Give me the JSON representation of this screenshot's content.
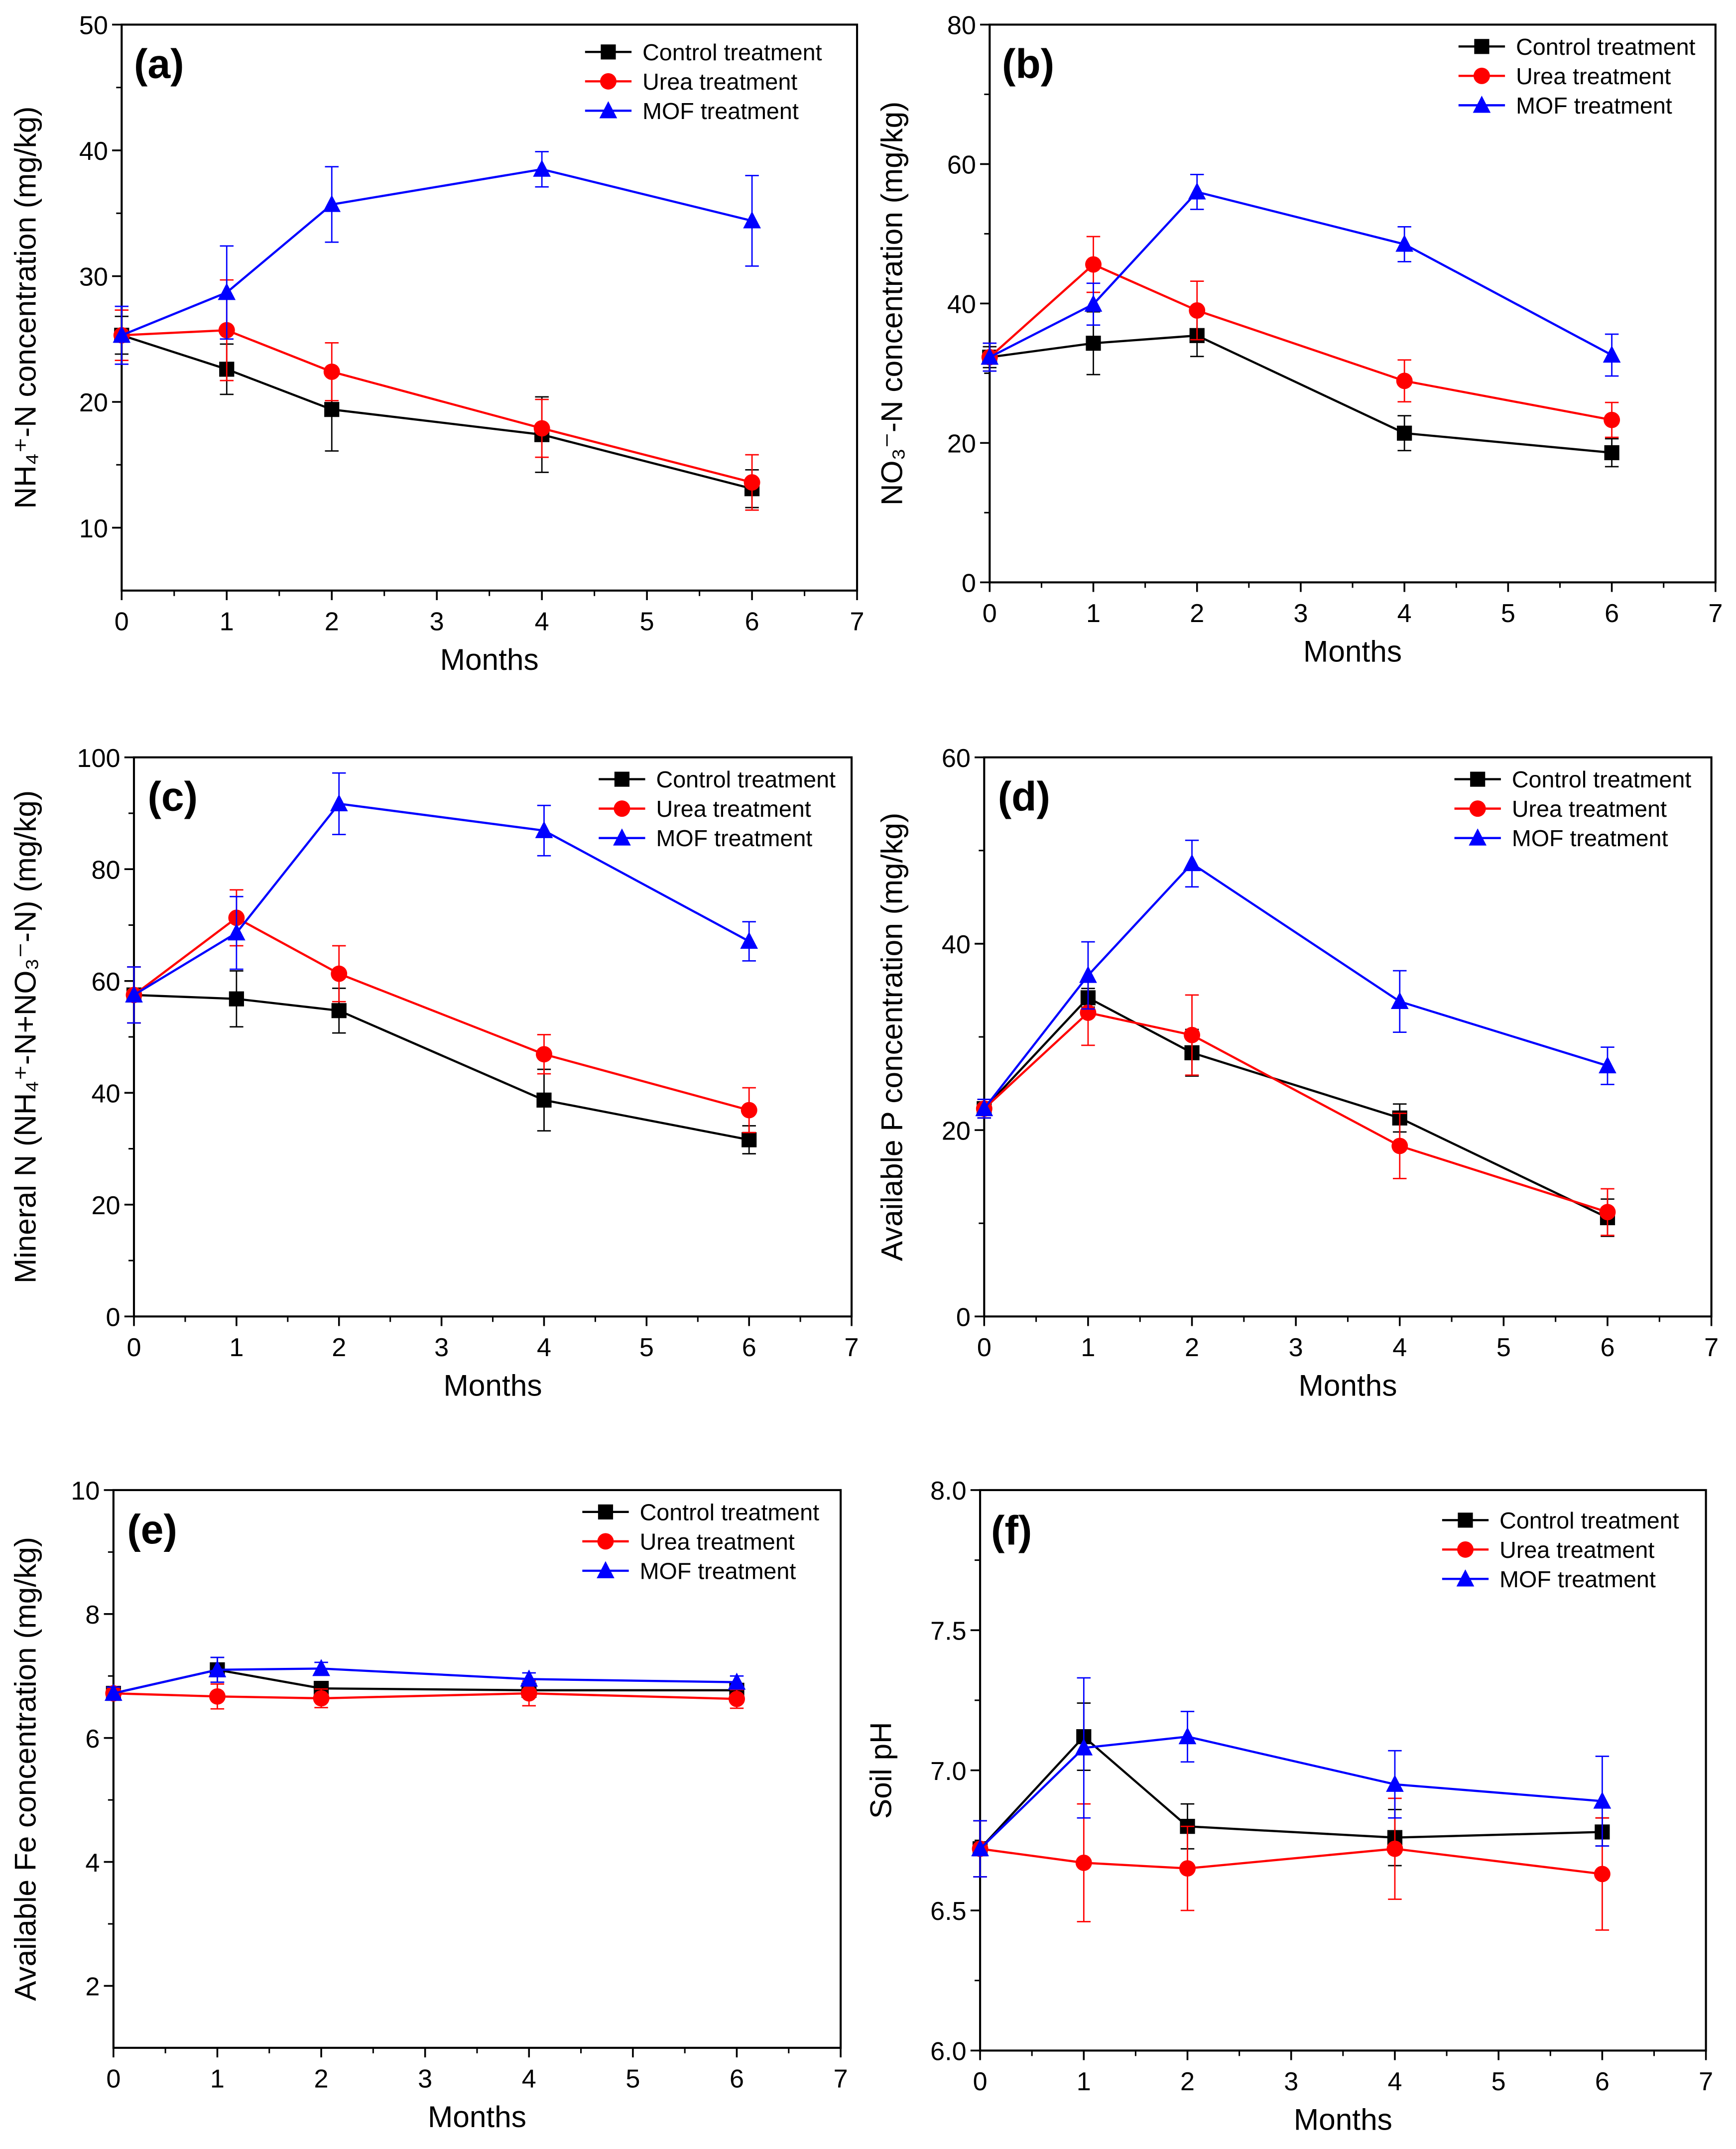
{
  "colors": {
    "control": "#000000",
    "urea": "#ff0000",
    "mof": "#0000ff"
  },
  "chart_data": [
    {
      "panel": "(a)",
      "type": "line",
      "xlabel": "Months",
      "ylabel": "NH₄⁺-N concentration (mg/kg)",
      "xlim": [
        0,
        7
      ],
      "xticks": [
        0,
        1,
        2,
        3,
        4,
        5,
        6,
        7
      ],
      "ylim": [
        5,
        50
      ],
      "yticks": [
        10,
        20,
        30,
        40,
        50
      ],
      "legend": "top-right",
      "x": [
        0,
        1,
        2,
        4,
        6
      ],
      "series": [
        {
          "name": "Control treatment",
          "color": "#000000",
          "marker": "square",
          "values": [
            25.3,
            22.6,
            19.4,
            17.4,
            13.1
          ],
          "errors": [
            1.5,
            2.0,
            3.3,
            3.0,
            1.5
          ]
        },
        {
          "name": "Urea treatment",
          "color": "#ff0000",
          "marker": "circle",
          "values": [
            25.3,
            25.7,
            22.4,
            17.9,
            13.6
          ],
          "errors": [
            2.0,
            4.0,
            2.3,
            2.3,
            2.2
          ]
        },
        {
          "name": "MOF treatment",
          "color": "#0000ff",
          "marker": "triangle",
          "values": [
            25.3,
            28.7,
            35.7,
            38.5,
            34.4
          ],
          "errors": [
            2.3,
            3.7,
            3.0,
            1.4,
            3.6
          ]
        }
      ]
    },
    {
      "panel": "(b)",
      "type": "line",
      "xlabel": "Months",
      "ylabel": "NO₃⁻-N concentration (mg/kg)",
      "xlim": [
        0,
        7
      ],
      "xticks": [
        0,
        1,
        2,
        3,
        4,
        5,
        6,
        7
      ],
      "ylim": [
        0,
        80
      ],
      "yticks": [
        0,
        20,
        40,
        60,
        80
      ],
      "legend": "top-right",
      "x": [
        0,
        1,
        2,
        4,
        6
      ],
      "series": [
        {
          "name": "Control treatment",
          "color": "#000000",
          "marker": "square",
          "values": [
            32.3,
            34.3,
            35.4,
            21.4,
            18.6
          ],
          "errors": [
            1.5,
            4.5,
            3.0,
            2.5,
            2.0
          ]
        },
        {
          "name": "Urea treatment",
          "color": "#ff0000",
          "marker": "circle",
          "values": [
            32.3,
            45.6,
            39.0,
            28.9,
            23.3
          ],
          "errors": [
            2.0,
            4.0,
            4.2,
            3.0,
            2.5
          ]
        },
        {
          "name": "MOF treatment",
          "color": "#0000ff",
          "marker": "triangle",
          "values": [
            32.3,
            39.9,
            56.0,
            48.5,
            32.6
          ],
          "errors": [
            2.0,
            3.0,
            2.5,
            2.5,
            3.0
          ]
        }
      ]
    },
    {
      "panel": "(c)",
      "type": "line",
      "xlabel": "Months",
      "ylabel": "Mineral N (NH₄⁺-N+NO₃⁻-N) (mg/kg)",
      "xlim": [
        0,
        7
      ],
      "xticks": [
        0,
        1,
        2,
        3,
        4,
        5,
        6,
        7
      ],
      "ylim": [
        0,
        100
      ],
      "yticks": [
        0,
        20,
        40,
        60,
        80,
        100
      ],
      "legend": "top-right",
      "x": [
        0,
        1,
        2,
        4,
        6
      ],
      "series": [
        {
          "name": "Control treatment",
          "color": "#000000",
          "marker": "square",
          "values": [
            57.5,
            56.8,
            54.7,
            38.7,
            31.6
          ],
          "errors": [
            5.0,
            5.0,
            4.0,
            5.5,
            2.5
          ]
        },
        {
          "name": "Urea treatment",
          "color": "#ff0000",
          "marker": "circle",
          "values": [
            57.5,
            71.3,
            61.3,
            46.9,
            36.9
          ],
          "errors": [
            5.0,
            5.0,
            5.0,
            3.5,
            4.0
          ]
        },
        {
          "name": "MOF treatment",
          "color": "#0000ff",
          "marker": "triangle",
          "values": [
            57.5,
            68.6,
            91.7,
            86.9,
            67.1
          ],
          "errors": [
            5.0,
            6.5,
            5.5,
            4.5,
            3.5
          ]
        }
      ]
    },
    {
      "panel": "(d)",
      "type": "line",
      "xlabel": "Months",
      "ylabel": "Available P concentration (mg/kg)",
      "xlim": [
        0,
        7
      ],
      "xticks": [
        0,
        1,
        2,
        3,
        4,
        5,
        6,
        7
      ],
      "ylim": [
        0,
        60
      ],
      "yticks": [
        0,
        20,
        40,
        60
      ],
      "legend": "top-right",
      "x": [
        0,
        1,
        2,
        4,
        6
      ],
      "series": [
        {
          "name": "Control treatment",
          "color": "#000000",
          "marker": "square",
          "values": [
            22.3,
            34.2,
            28.3,
            21.3,
            10.6
          ],
          "errors": [
            1.0,
            1.0,
            2.5,
            1.5,
            2.0
          ]
        },
        {
          "name": "Urea treatment",
          "color": "#ff0000",
          "marker": "circle",
          "values": [
            22.3,
            32.6,
            30.2,
            18.3,
            11.2
          ],
          "errors": [
            1.0,
            3.5,
            4.3,
            3.5,
            2.5
          ]
        },
        {
          "name": "MOF treatment",
          "color": "#0000ff",
          "marker": "triangle",
          "values": [
            22.3,
            36.6,
            48.6,
            33.8,
            26.9
          ],
          "errors": [
            1.0,
            3.6,
            2.5,
            3.3,
            2.0
          ]
        }
      ]
    },
    {
      "panel": "(e)",
      "type": "line",
      "xlabel": "Months",
      "ylabel": "Available Fe concentration (mg/kg)",
      "xlim": [
        0,
        7
      ],
      "xticks": [
        0,
        1,
        2,
        3,
        4,
        5,
        6,
        7
      ],
      "ylim": [
        1,
        10
      ],
      "yticks": [
        2,
        4,
        6,
        8,
        10
      ],
      "legend": "top-right",
      "x": [
        0,
        1,
        2,
        4,
        6
      ],
      "series": [
        {
          "name": "Control treatment",
          "color": "#000000",
          "marker": "square",
          "values": [
            6.72,
            7.1,
            6.8,
            6.77,
            6.77
          ],
          "errors": [
            0.1,
            0.2,
            0.1,
            0.1,
            0.1
          ]
        },
        {
          "name": "Urea treatment",
          "color": "#ff0000",
          "marker": "circle",
          "values": [
            6.72,
            6.67,
            6.64,
            6.72,
            6.63
          ],
          "errors": [
            0.1,
            0.2,
            0.15,
            0.2,
            0.15
          ]
        },
        {
          "name": "MOF treatment",
          "color": "#0000ff",
          "marker": "triangle",
          "values": [
            6.72,
            7.1,
            7.12,
            6.95,
            6.9
          ],
          "errors": [
            0.1,
            0.2,
            0.1,
            0.1,
            0.1
          ]
        }
      ]
    },
    {
      "panel": "(f)",
      "type": "line",
      "xlabel": "Months",
      "ylabel": "Soil pH",
      "xlim": [
        0,
        7
      ],
      "xticks": [
        0,
        1,
        2,
        3,
        4,
        5,
        6,
        7
      ],
      "ylim": [
        6.0,
        8.0
      ],
      "yticks": [
        6.0,
        6.5,
        7.0,
        7.5,
        8.0
      ],
      "ytick_decimals": 1,
      "legend": "top-right",
      "x": [
        0,
        1,
        2,
        4,
        6
      ],
      "series": [
        {
          "name": "Control treatment",
          "color": "#000000",
          "marker": "square",
          "values": [
            6.72,
            7.12,
            6.8,
            6.76,
            6.78
          ],
          "errors": [
            0.1,
            0.12,
            0.08,
            0.1,
            0.05
          ]
        },
        {
          "name": "Urea treatment",
          "color": "#ff0000",
          "marker": "circle",
          "values": [
            6.72,
            6.67,
            6.65,
            6.72,
            6.63
          ],
          "errors": [
            0.1,
            0.21,
            0.15,
            0.18,
            0.2
          ]
        },
        {
          "name": "MOF treatment",
          "color": "#0000ff",
          "marker": "triangle",
          "values": [
            6.72,
            7.08,
            7.12,
            6.95,
            6.89
          ],
          "errors": [
            0.1,
            0.25,
            0.09,
            0.12,
            0.16
          ]
        }
      ]
    }
  ]
}
